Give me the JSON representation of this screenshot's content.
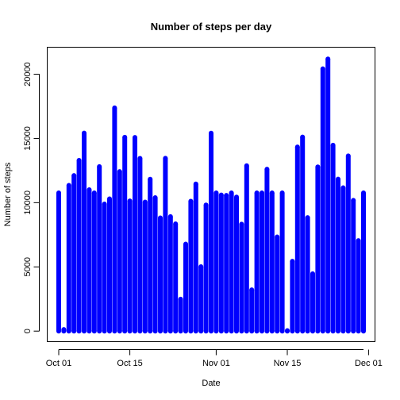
{
  "chart_data": {
    "type": "bar",
    "title": "Number of steps per day",
    "xlabel": "Date",
    "ylabel": "Number of steps",
    "color": "#0000FF",
    "x_range": [
      "2012-10-01",
      "2012-11-30"
    ],
    "ylim": [
      0,
      21194
    ],
    "y_ticks": [
      0,
      5000,
      10000,
      15000,
      20000
    ],
    "x_ticks": [
      {
        "date": "2012-10-01",
        "label": "Oct 01"
      },
      {
        "date": "2012-10-15",
        "label": "Oct 15"
      },
      {
        "date": "2012-11-01",
        "label": "Nov 01"
      },
      {
        "date": "2012-11-15",
        "label": "Nov 15"
      },
      {
        "date": "2012-12-01",
        "label": "Dec 01"
      }
    ],
    "grid": false,
    "dates": [
      "2012-10-01",
      "2012-10-02",
      "2012-10-03",
      "2012-10-04",
      "2012-10-05",
      "2012-10-06",
      "2012-10-07",
      "2012-10-08",
      "2012-10-09",
      "2012-10-10",
      "2012-10-11",
      "2012-10-12",
      "2012-10-13",
      "2012-10-14",
      "2012-10-15",
      "2012-10-16",
      "2012-10-17",
      "2012-10-18",
      "2012-10-19",
      "2012-10-20",
      "2012-10-21",
      "2012-10-22",
      "2012-10-23",
      "2012-10-24",
      "2012-10-25",
      "2012-10-26",
      "2012-10-27",
      "2012-10-28",
      "2012-10-29",
      "2012-10-30",
      "2012-10-31",
      "2012-11-01",
      "2012-11-02",
      "2012-11-03",
      "2012-11-04",
      "2012-11-05",
      "2012-11-06",
      "2012-11-07",
      "2012-11-08",
      "2012-11-09",
      "2012-11-10",
      "2012-11-11",
      "2012-11-12",
      "2012-11-13",
      "2012-11-14",
      "2012-11-15",
      "2012-11-16",
      "2012-11-17",
      "2012-11-18",
      "2012-11-19",
      "2012-11-20",
      "2012-11-21",
      "2012-11-22",
      "2012-11-23",
      "2012-11-24",
      "2012-11-25",
      "2012-11-26",
      "2012-11-27",
      "2012-11-28",
      "2012-11-29",
      "2012-11-30"
    ],
    "values": [
      10766,
      126,
      11352,
      12116,
      13294,
      15420,
      11015,
      10766,
      12811,
      9900,
      10304,
      17382,
      12426,
      15098,
      10139,
      15084,
      13452,
      10056,
      11829,
      10395,
      8821,
      13460,
      8918,
      8355,
      2492,
      6778,
      10119,
      11458,
      5018,
      9819,
      15414,
      10766,
      10600,
      10571,
      10766,
      10439,
      8334,
      12883,
      3219,
      10766,
      10766,
      12608,
      10765,
      7336,
      10766,
      41,
      5441,
      14339,
      15110,
      8841,
      4472,
      12787,
      20427,
      21194,
      14478,
      11834,
      11162,
      13646,
      10183,
      7047,
      10766
    ]
  }
}
